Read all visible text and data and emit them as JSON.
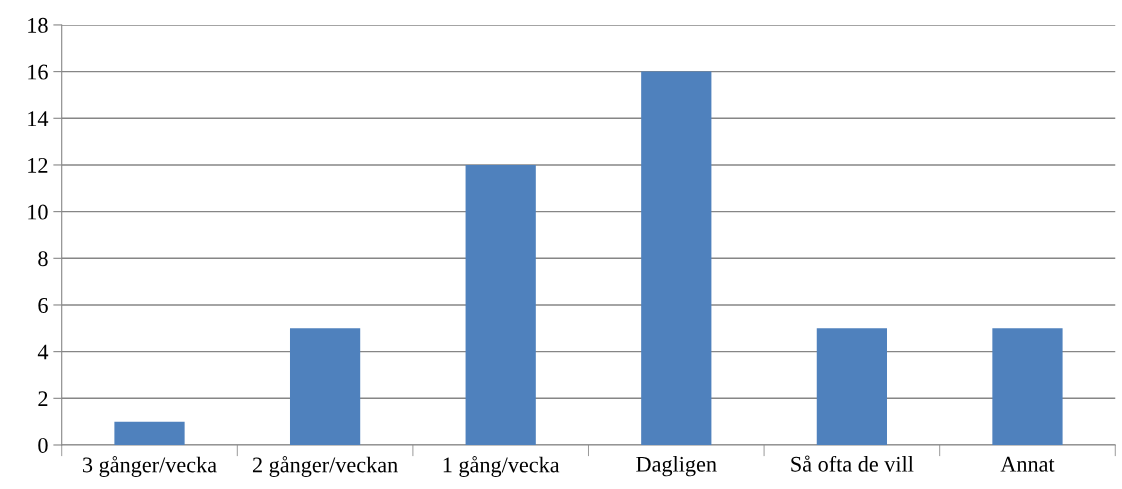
{
  "chart_data": {
    "type": "bar",
    "categories": [
      "3 gånger/vecka",
      "2 gånger/veckan",
      "1 gång/vecka",
      "Dagligen",
      "Så ofta de vill",
      "Annat"
    ],
    "values": [
      1,
      5,
      12,
      16,
      5,
      5
    ],
    "color": "#4f81bd",
    "ylim": [
      0,
      18
    ],
    "yticks": [
      0,
      2,
      4,
      6,
      8,
      10,
      12,
      14,
      16,
      18
    ],
    "grid": "y"
  }
}
